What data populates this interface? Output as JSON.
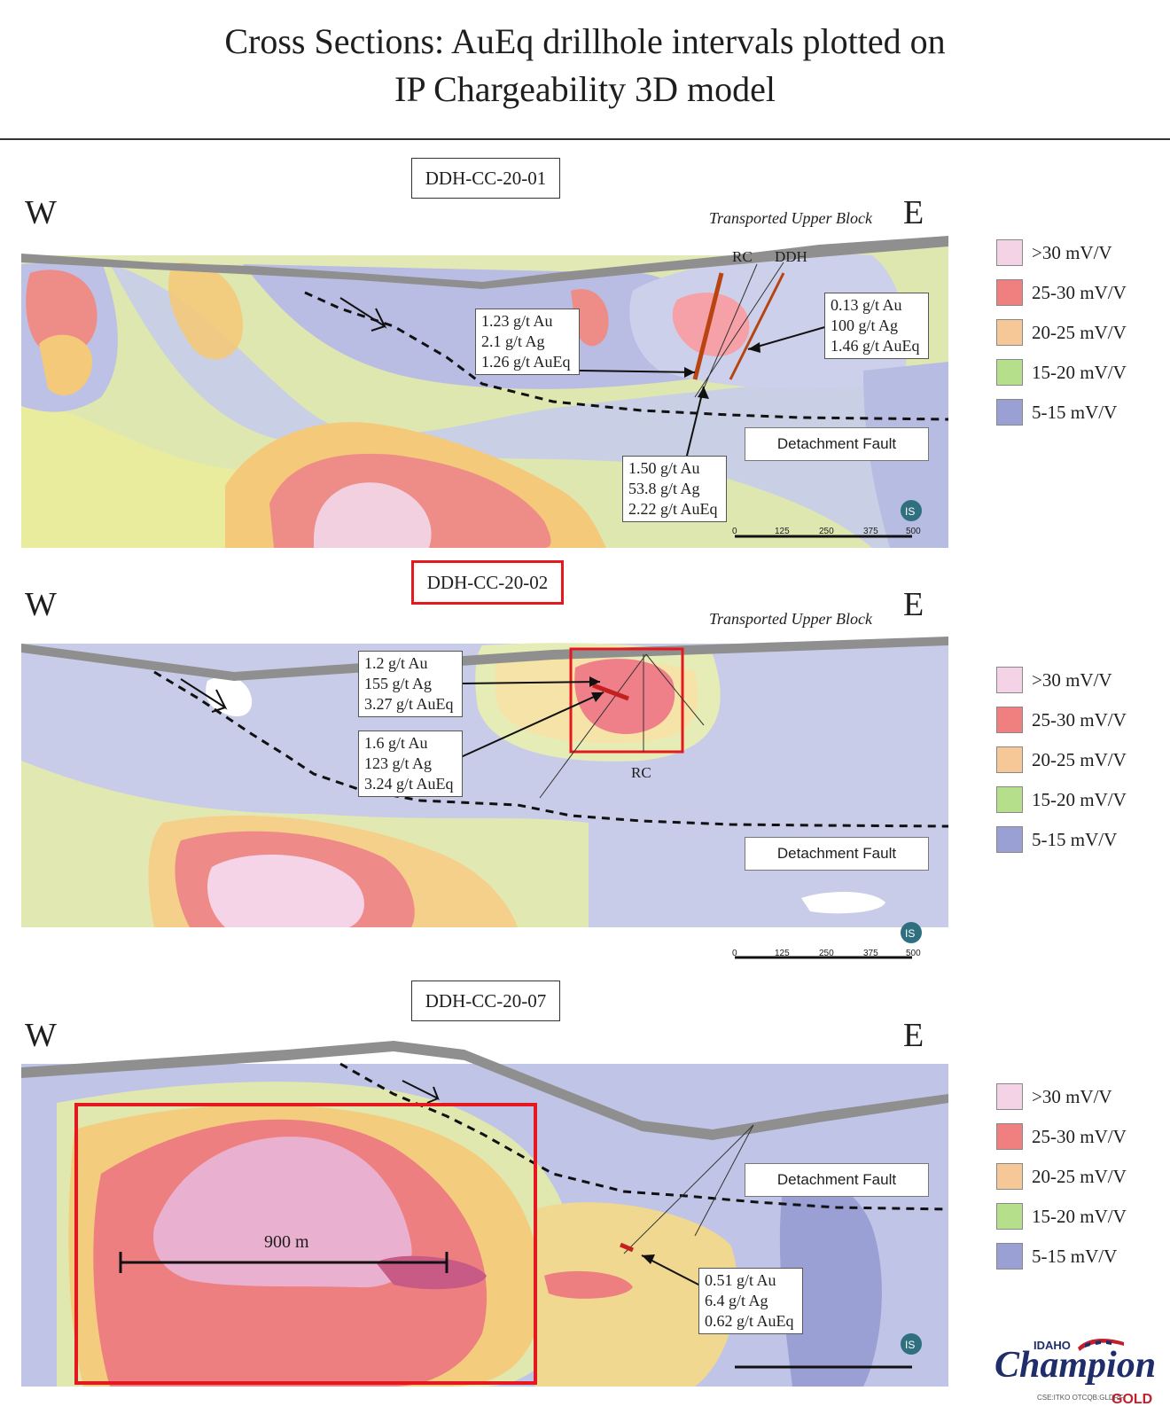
{
  "title": [
    "Cross Sections: AuEq drillhole intervals plotted on",
    "IP Chargeability 3D model"
  ],
  "direction": {
    "west": "W",
    "east": "E"
  },
  "legend": [
    {
      "label": ">30 mV/V",
      "color": "#f4d3e6"
    },
    {
      "label": "25-30 mV/V",
      "color": "#f08080"
    },
    {
      "label": "20-25 mV/V",
      "color": "#f6c898"
    },
    {
      "label": "15-20 mV/V",
      "color": "#b6df8c"
    },
    {
      "label": "5-15 mV/V",
      "color": "#9aa0d4"
    }
  ],
  "panels": [
    {
      "hole": "DDH-CC-20-01",
      "transported": "Transported Upper Block",
      "fault": "Detachment Fault",
      "rc_label": "RC",
      "ddh_label": "DDH",
      "callouts": [
        [
          "1.23 g/t Au",
          "2.1 g/t Ag",
          "1.26 g/t AuEq"
        ],
        [
          "0.13 g/t Au",
          "100 g/t Ag",
          "1.46 g/t AuEq"
        ],
        [
          "1.50 g/t Au",
          "53.8 g/t Ag",
          "2.22 g/t AuEq"
        ]
      ]
    },
    {
      "hole": "DDH-CC-20-02",
      "transported": "Transported Upper Block",
      "fault": "Detachment Fault",
      "rc_label": "RC",
      "callouts": [
        [
          "1.2 g/t Au",
          "155 g/t Ag",
          "3.27 g/t AuEq"
        ],
        [
          "1.6 g/t Au",
          "123 g/t Ag",
          "3.24 g/t AuEq"
        ]
      ]
    },
    {
      "hole": "DDH-CC-20-07",
      "fault": "Detachment Fault",
      "distance": "900 m",
      "callouts": [
        [
          "0.51 g/t Au",
          "6.4 g/t Ag",
          "0.62 g/t AuEq"
        ]
      ]
    }
  ],
  "scale_ticks": [
    "0",
    "125",
    "250",
    "375",
    "500"
  ],
  "logo": {
    "idaho": "IDAHO",
    "name": "Champion",
    "gold": "GOLD",
    "tickers": "CSE:ITKO  OTCQB:GLDRF"
  }
}
